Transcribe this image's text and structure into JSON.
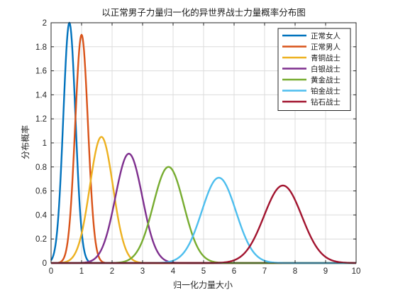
{
  "chart_data": {
    "type": "line",
    "title": "以正常男子力量归一化的异世界战士力量概率分布图",
    "xlabel": "归一化力量大小",
    "ylabel": "分布概率",
    "xlim": [
      0,
      10
    ],
    "ylim": [
      0,
      2
    ],
    "xticks": [
      "0",
      "1",
      "2",
      "3",
      "4",
      "5",
      "6",
      "7",
      "8",
      "9",
      "10"
    ],
    "yticks": [
      "0",
      "0.2",
      "0.4",
      "0.6",
      "0.8",
      "1",
      "1.2",
      "1.4",
      "1.6",
      "1.8",
      "2"
    ],
    "grid": true,
    "legend_position": "top-right",
    "series": [
      {
        "name": "正常女人",
        "color": "#0072BD",
        "mean": 0.6,
        "sd": 0.2,
        "peak": 2.0
      },
      {
        "name": "正常男人",
        "color": "#D95319",
        "mean": 1.0,
        "sd": 0.21,
        "peak": 1.9
      },
      {
        "name": "青铜战士",
        "color": "#EDB120",
        "mean": 1.65,
        "sd": 0.38,
        "peak": 1.05
      },
      {
        "name": "白银战士",
        "color": "#7E2F8E",
        "mean": 2.55,
        "sd": 0.44,
        "peak": 0.91
      },
      {
        "name": "黄金战士",
        "color": "#77AC30",
        "mean": 3.85,
        "sd": 0.5,
        "peak": 0.8
      },
      {
        "name": "铂金战士",
        "color": "#4DBEEE",
        "mean": 5.5,
        "sd": 0.56,
        "peak": 0.71
      },
      {
        "name": "钻石战士",
        "color": "#A2142F",
        "mean": 7.6,
        "sd": 0.62,
        "peak": 0.645
      }
    ]
  }
}
